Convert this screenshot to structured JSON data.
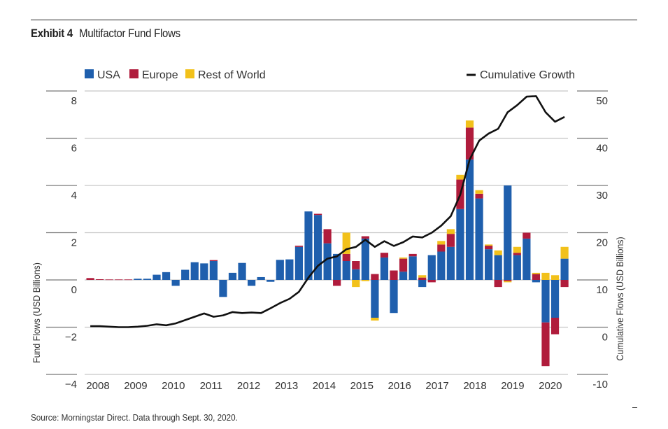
{
  "header": {
    "exhibit_label": "Exhibit 4",
    "title": "Multifactor Fund Flows"
  },
  "footer": {
    "source": "Source: Morningstar Direct. Data through Sept. 30, 2020."
  },
  "chart_data": {
    "type": "bar",
    "stacked": true,
    "title": "Multifactor Fund Flows",
    "xlabel": "",
    "ylabel": "Fund Flows (USD Billions)",
    "y2label": "Cumulative Flows (USD Billions)",
    "ylim": [
      -4,
      8
    ],
    "y2lim": [
      -10,
      50
    ],
    "yticks": [
      "8",
      "6",
      "4",
      "2",
      "0",
      "−2",
      "−4"
    ],
    "yticks_values": [
      8,
      6,
      4,
      2,
      0,
      -2,
      -4
    ],
    "y2ticks": [
      "50",
      "40",
      "30",
      "20",
      "10",
      "0",
      "-10"
    ],
    "y2ticks_values": [
      50,
      40,
      30,
      20,
      10,
      0,
      -10
    ],
    "xtick_labels": [
      "2008",
      "2009",
      "2010",
      "2011",
      "2012",
      "2013",
      "2014",
      "2015",
      "2016",
      "2017",
      "2018",
      "2019",
      "2020"
    ],
    "grid": true,
    "legend_position": "top",
    "colors": {
      "USA": "#1f5fad",
      "Europe": "#b01c3c",
      "Rest of World": "#f2c11a",
      "Cumulative Growth": "#111111"
    },
    "categories": [
      "2008Q1",
      "2008Q2",
      "2008Q3",
      "2008Q4",
      "2009Q1",
      "2009Q2",
      "2009Q3",
      "2009Q4",
      "2010Q1",
      "2010Q2",
      "2010Q3",
      "2010Q4",
      "2011Q1",
      "2011Q2",
      "2011Q3",
      "2011Q4",
      "2012Q1",
      "2012Q2",
      "2012Q3",
      "2012Q4",
      "2013Q1",
      "2013Q2",
      "2013Q3",
      "2013Q4",
      "2014Q1",
      "2014Q2",
      "2014Q3",
      "2014Q4",
      "2015Q1",
      "2015Q2",
      "2015Q3",
      "2015Q4",
      "2016Q1",
      "2016Q2",
      "2016Q3",
      "2016Q4",
      "2017Q1",
      "2017Q2",
      "2017Q3",
      "2017Q4",
      "2018Q1",
      "2018Q2",
      "2018Q3",
      "2018Q4",
      "2019Q1",
      "2019Q2",
      "2019Q3",
      "2019Q4",
      "2020Q1",
      "2020Q2",
      "2020Q3"
    ],
    "series": [
      {
        "name": "USA",
        "type": "bar",
        "axis": "left",
        "values": [
          0,
          0,
          0,
          0,
          0,
          0.05,
          0.05,
          0.22,
          0.33,
          -0.25,
          0.43,
          0.75,
          0.7,
          0.8,
          -0.72,
          0.3,
          0.72,
          -0.25,
          0.12,
          -0.08,
          0.85,
          0.87,
          1.4,
          2.9,
          2.75,
          1.55,
          1.1,
          0.8,
          0.45,
          1.75,
          -1.6,
          0.95,
          -1.4,
          0.35,
          1.0,
          -0.3,
          1.05,
          1.2,
          1.4,
          3.0,
          5.1,
          3.45,
          1.3,
          1.05,
          4.0,
          1.05,
          1.75,
          -0.1,
          -1.8,
          -1.6,
          0.9
        ]
      },
      {
        "name": "Europe",
        "type": "bar",
        "axis": "left",
        "values": [
          0.08,
          0.03,
          0.02,
          0.02,
          0.02,
          0,
          0,
          0,
          0,
          0,
          0,
          0,
          0,
          0.04,
          0,
          0,
          0,
          0,
          0,
          0,
          0,
          0,
          0.05,
          0,
          0.05,
          0.6,
          -0.25,
          0.3,
          0.35,
          0.1,
          0.25,
          0.2,
          0.4,
          0.55,
          0.1,
          0.1,
          -0.1,
          0.3,
          0.55,
          1.25,
          1.35,
          0.2,
          0.15,
          -0.3,
          -0.05,
          0.1,
          0.25,
          0.25,
          -1.85,
          -0.7,
          -0.3
        ]
      },
      {
        "name": "Rest of World",
        "type": "bar",
        "axis": "left",
        "values": [
          0,
          0,
          0,
          0,
          0,
          0,
          0,
          0,
          0,
          0,
          0,
          0,
          0,
          0,
          0,
          0,
          0,
          0,
          0,
          0,
          0,
          0,
          0,
          0,
          0,
          0,
          0,
          0.9,
          -0.3,
          -0.05,
          -0.12,
          0,
          0,
          0.05,
          0,
          0.1,
          0,
          0.15,
          0.2,
          0.2,
          0.3,
          0.15,
          0.05,
          0.2,
          -0.05,
          0.25,
          0,
          0.05,
          0.3,
          0.2,
          0.5
        ]
      },
      {
        "name": "Cumulative Growth",
        "type": "line",
        "axis": "right",
        "values": [
          0.2,
          0.2,
          0.1,
          0.0,
          0.0,
          0.1,
          0.3,
          0.6,
          0.4,
          0.8,
          1.5,
          2.2,
          2.9,
          2.2,
          2.5,
          3.2,
          3.0,
          3.1,
          3.0,
          4.0,
          5.1,
          6.0,
          7.5,
          10.5,
          13.0,
          14.5,
          15.0,
          16.5,
          17.0,
          18.5,
          17.0,
          18.2,
          17.2,
          18.0,
          19.2,
          19.0,
          20.0,
          21.5,
          23.5,
          28.0,
          35.5,
          39.5,
          41.0,
          42.0,
          45.5,
          47.0,
          48.8,
          48.9,
          45.5,
          43.5,
          44.5
        ]
      }
    ],
    "legend": [
      {
        "label": "USA",
        "type": "swatch"
      },
      {
        "label": "Europe",
        "type": "swatch"
      },
      {
        "label": "Rest of World",
        "type": "swatch"
      },
      {
        "label": "Cumulative Growth",
        "type": "line"
      }
    ]
  }
}
